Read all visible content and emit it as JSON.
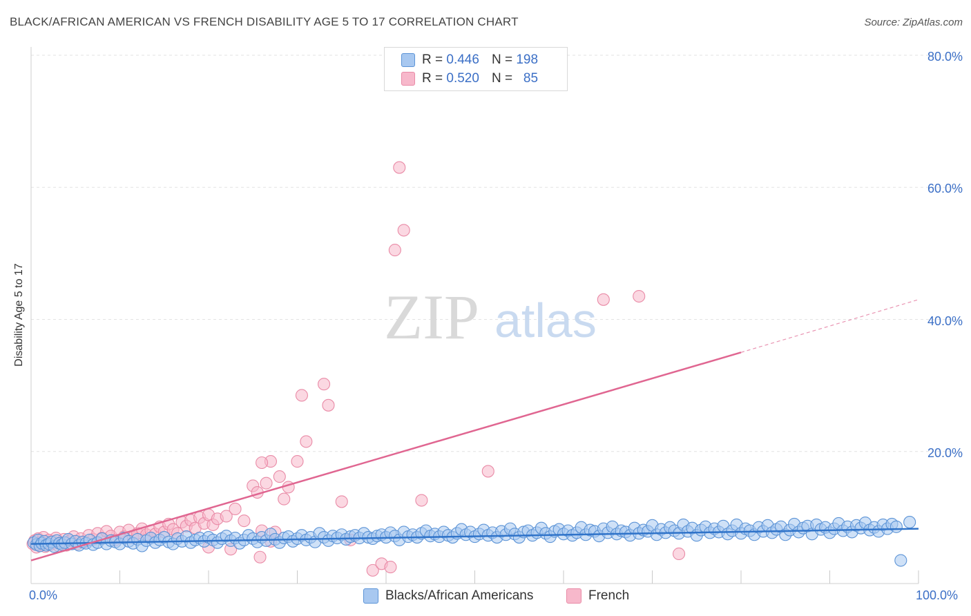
{
  "title": "BLACK/AFRICAN AMERICAN VS FRENCH DISABILITY AGE 5 TO 17 CORRELATION CHART",
  "source": "Source: ZipAtlas.com",
  "watermark": {
    "zip": "ZIP",
    "atlas": "atlas"
  },
  "legend": {
    "r_label": "R =",
    "n_label": "N =",
    "series1": {
      "r": "0.446",
      "n": "198"
    },
    "series2": {
      "r": "0.520",
      "n": "85"
    }
  },
  "colors": {
    "blue_fill": "#a8c8f0",
    "blue_stroke": "#5b93d6",
    "blue_line": "#2f73c9",
    "pink_fill": "#f7b8cb",
    "pink_stroke": "#e98aa6",
    "pink_line": "#e06691",
    "axis_text": "#3b6fc6"
  },
  "chart_data": {
    "type": "scatter",
    "title": "BLACK/AFRICAN AMERICAN VS FRENCH DISABILITY AGE 5 TO 17 CORRELATION CHART",
    "xlabel": "",
    "ylabel": "Disability Age 5 to 17",
    "xlim": [
      0,
      100
    ],
    "ylim": [
      0,
      80
    ],
    "x_tick_labels": {
      "min": "0.0%",
      "max": "100.0%"
    },
    "y_tick_labels": [
      "20.0%",
      "40.0%",
      "60.0%",
      "80.0%"
    ],
    "y_ticks": [
      20,
      40,
      60,
      80
    ],
    "series": [
      {
        "name": "Blacks/African Americans",
        "r": 0.446,
        "n": 198,
        "trend": {
          "x0": 0,
          "y0": 6.0,
          "x1": 100,
          "y1": 8.3
        },
        "points": [
          [
            0.3,
            6.2
          ],
          [
            0.6,
            5.9
          ],
          [
            0.8,
            6.6
          ],
          [
            1.0,
            5.7
          ],
          [
            1.2,
            6.1
          ],
          [
            1.5,
            6.4
          ],
          [
            1.7,
            5.8
          ],
          [
            2.0,
            6.0
          ],
          [
            2.3,
            6.3
          ],
          [
            2.6,
            5.6
          ],
          [
            2.9,
            6.5
          ],
          [
            3.2,
            6.1
          ],
          [
            3.5,
            5.9
          ],
          [
            3.8,
            6.2
          ],
          [
            4.2,
            6.7
          ],
          [
            4.6,
            6.0
          ],
          [
            5.0,
            6.4
          ],
          [
            5.4,
            5.8
          ],
          [
            5.8,
            6.3
          ],
          [
            6.2,
            6.1
          ],
          [
            6.6,
            6.6
          ],
          [
            7.0,
            5.9
          ],
          [
            7.5,
            6.2
          ],
          [
            8.0,
            6.8
          ],
          [
            8.5,
            6.0
          ],
          [
            9.0,
            6.5
          ],
          [
            9.5,
            6.3
          ],
          [
            10.0,
            6.0
          ],
          [
            10.5,
            6.9
          ],
          [
            11.0,
            6.4
          ],
          [
            11.5,
            6.1
          ],
          [
            12.0,
            6.7
          ],
          [
            12.5,
            5.7
          ],
          [
            13.0,
            6.5
          ],
          [
            13.5,
            6.9
          ],
          [
            14.0,
            6.2
          ],
          [
            14.5,
            6.6
          ],
          [
            15.0,
            7.0
          ],
          [
            15.5,
            6.3
          ],
          [
            16.0,
            6.0
          ],
          [
            16.5,
            6.8
          ],
          [
            17.0,
            6.4
          ],
          [
            17.5,
            7.1
          ],
          [
            18.0,
            6.2
          ],
          [
            18.5,
            6.6
          ],
          [
            19.0,
            6.9
          ],
          [
            19.5,
            6.4
          ],
          [
            20.0,
            7.0
          ],
          [
            20.5,
            6.6
          ],
          [
            21.0,
            6.2
          ],
          [
            21.5,
            6.8
          ],
          [
            22.0,
            7.2
          ],
          [
            22.5,
            6.5
          ],
          [
            23.0,
            6.9
          ],
          [
            23.5,
            6.1
          ],
          [
            24.0,
            6.6
          ],
          [
            24.5,
            7.3
          ],
          [
            25.0,
            6.8
          ],
          [
            25.5,
            6.3
          ],
          [
            26.0,
            7.0
          ],
          [
            26.5,
            6.5
          ],
          [
            27.0,
            7.5
          ],
          [
            27.5,
            6.7
          ],
          [
            28.0,
            6.2
          ],
          [
            28.5,
            6.9
          ],
          [
            29.0,
            7.1
          ],
          [
            29.5,
            6.4
          ],
          [
            30.0,
            6.8
          ],
          [
            30.5,
            7.3
          ],
          [
            31.0,
            6.6
          ],
          [
            31.5,
            7.0
          ],
          [
            32.0,
            6.3
          ],
          [
            32.5,
            7.6
          ],
          [
            33.0,
            7.0
          ],
          [
            33.5,
            6.5
          ],
          [
            34.0,
            7.2
          ],
          [
            34.5,
            6.9
          ],
          [
            35.0,
            7.4
          ],
          [
            35.5,
            6.7
          ],
          [
            36.0,
            7.1
          ],
          [
            36.5,
            7.3
          ],
          [
            37.0,
            6.9
          ],
          [
            37.5,
            7.6
          ],
          [
            38.0,
            7.0
          ],
          [
            38.5,
            6.8
          ],
          [
            39.0,
            7.2
          ],
          [
            39.5,
            7.4
          ],
          [
            40.0,
            7.0
          ],
          [
            40.5,
            7.7
          ],
          [
            41.0,
            7.2
          ],
          [
            41.5,
            6.6
          ],
          [
            42.0,
            7.8
          ],
          [
            42.5,
            7.1
          ],
          [
            43.0,
            7.4
          ],
          [
            43.5,
            7.0
          ],
          [
            44.0,
            7.6
          ],
          [
            44.5,
            8.0
          ],
          [
            45.0,
            7.2
          ],
          [
            45.5,
            7.5
          ],
          [
            46.0,
            7.1
          ],
          [
            46.5,
            7.8
          ],
          [
            47.0,
            7.3
          ],
          [
            47.5,
            7.0
          ],
          [
            48.0,
            7.6
          ],
          [
            48.5,
            8.2
          ],
          [
            49.0,
            7.4
          ],
          [
            49.5,
            7.8
          ],
          [
            50.0,
            7.1
          ],
          [
            50.5,
            7.5
          ],
          [
            51.0,
            8.1
          ],
          [
            51.5,
            7.3
          ],
          [
            52.0,
            7.7
          ],
          [
            52.5,
            7.0
          ],
          [
            53.0,
            7.9
          ],
          [
            53.5,
            7.4
          ],
          [
            54.0,
            8.3
          ],
          [
            54.5,
            7.5
          ],
          [
            55.0,
            7.0
          ],
          [
            55.5,
            7.8
          ],
          [
            56.0,
            8.0
          ],
          [
            56.5,
            7.3
          ],
          [
            57.0,
            7.7
          ],
          [
            57.5,
            8.4
          ],
          [
            58.0,
            7.6
          ],
          [
            58.5,
            7.1
          ],
          [
            59.0,
            7.9
          ],
          [
            59.5,
            8.2
          ],
          [
            60.0,
            7.5
          ],
          [
            60.5,
            8.0
          ],
          [
            61.0,
            7.3
          ],
          [
            61.5,
            7.7
          ],
          [
            62.0,
            8.5
          ],
          [
            62.5,
            7.4
          ],
          [
            63.0,
            8.1
          ],
          [
            63.5,
            7.9
          ],
          [
            64.0,
            7.2
          ],
          [
            64.5,
            8.3
          ],
          [
            65.0,
            7.7
          ],
          [
            65.5,
            8.6
          ],
          [
            66.0,
            7.5
          ],
          [
            66.5,
            8.0
          ],
          [
            67.0,
            7.8
          ],
          [
            67.5,
            7.3
          ],
          [
            68.0,
            8.4
          ],
          [
            68.5,
            7.6
          ],
          [
            69.0,
            8.1
          ],
          [
            69.5,
            7.9
          ],
          [
            70.0,
            8.8
          ],
          [
            70.5,
            7.4
          ],
          [
            71.0,
            8.2
          ],
          [
            71.5,
            7.7
          ],
          [
            72.0,
            8.5
          ],
          [
            72.5,
            8.0
          ],
          [
            73.0,
            7.6
          ],
          [
            73.5,
            8.9
          ],
          [
            74.0,
            7.9
          ],
          [
            74.5,
            8.4
          ],
          [
            75.0,
            7.3
          ],
          [
            75.5,
            8.1
          ],
          [
            76.0,
            8.6
          ],
          [
            76.5,
            7.7
          ],
          [
            77.0,
            8.3
          ],
          [
            77.5,
            7.8
          ],
          [
            78.0,
            8.7
          ],
          [
            78.5,
            7.5
          ],
          [
            79.0,
            8.0
          ],
          [
            79.5,
            8.9
          ],
          [
            80.0,
            7.6
          ],
          [
            80.5,
            8.3
          ],
          [
            81.0,
            8.0
          ],
          [
            81.5,
            7.4
          ],
          [
            82.0,
            8.5
          ],
          [
            82.5,
            7.9
          ],
          [
            83.0,
            8.8
          ],
          [
            83.5,
            7.7
          ],
          [
            84.0,
            8.2
          ],
          [
            84.5,
            8.6
          ],
          [
            85.0,
            7.4
          ],
          [
            85.5,
            8.1
          ],
          [
            86.0,
            9.0
          ],
          [
            86.5,
            7.8
          ],
          [
            87.0,
            8.4
          ],
          [
            87.5,
            8.7
          ],
          [
            88.0,
            7.5
          ],
          [
            88.5,
            8.9
          ],
          [
            89.0,
            8.2
          ],
          [
            89.5,
            8.5
          ],
          [
            90.0,
            7.7
          ],
          [
            90.5,
            8.3
          ],
          [
            91.0,
            9.1
          ],
          [
            91.5,
            8.0
          ],
          [
            92.0,
            8.6
          ],
          [
            92.5,
            7.8
          ],
          [
            93.0,
            8.8
          ],
          [
            93.5,
            8.4
          ],
          [
            94.0,
            9.2
          ],
          [
            94.5,
            8.1
          ],
          [
            95.0,
            8.5
          ],
          [
            95.5,
            7.9
          ],
          [
            96.0,
            8.9
          ],
          [
            96.5,
            8.3
          ],
          [
            97.0,
            9.0
          ],
          [
            97.5,
            8.6
          ],
          [
            98.0,
            3.5
          ],
          [
            99.0,
            9.3
          ]
        ]
      },
      {
        "name": "French",
        "r": 0.52,
        "n": 85,
        "trend": {
          "x0": 0,
          "y0": 3.5,
          "x1": 80,
          "y1": 35.0,
          "dashed_to": [
            100,
            43.0
          ]
        },
        "points": [
          [
            0.2,
            6.0
          ],
          [
            0.4,
            6.5
          ],
          [
            0.6,
            5.5
          ],
          [
            0.8,
            6.8
          ],
          [
            1.0,
            5.8
          ],
          [
            1.2,
            6.3
          ],
          [
            1.4,
            7.0
          ],
          [
            1.6,
            5.6
          ],
          [
            1.8,
            6.1
          ],
          [
            2.0,
            6.6
          ],
          [
            2.2,
            5.9
          ],
          [
            2.5,
            6.4
          ],
          [
            2.8,
            6.9
          ],
          [
            3.1,
            5.7
          ],
          [
            3.4,
            6.2
          ],
          [
            3.7,
            6.7
          ],
          [
            4.0,
            5.8
          ],
          [
            4.4,
            6.5
          ],
          [
            4.8,
            7.1
          ],
          [
            5.2,
            6.0
          ],
          [
            5.6,
            6.8
          ],
          [
            6.0,
            6.3
          ],
          [
            6.5,
            7.3
          ],
          [
            7.0,
            6.7
          ],
          [
            7.5,
            7.6
          ],
          [
            8.0,
            6.9
          ],
          [
            8.5,
            7.9
          ],
          [
            9.0,
            7.2
          ],
          [
            9.5,
            6.6
          ],
          [
            10.0,
            7.8
          ],
          [
            10.5,
            7.1
          ],
          [
            11.0,
            8.1
          ],
          [
            11.5,
            7.0
          ],
          [
            12.0,
            7.6
          ],
          [
            12.5,
            8.3
          ],
          [
            13.0,
            7.4
          ],
          [
            13.5,
            8.0
          ],
          [
            14.0,
            7.5
          ],
          [
            14.5,
            8.6
          ],
          [
            15.0,
            7.8
          ],
          [
            15.5,
            9.0
          ],
          [
            16.0,
            8.2
          ],
          [
            16.5,
            7.6
          ],
          [
            17.0,
            9.3
          ],
          [
            17.5,
            8.7
          ],
          [
            18.0,
            9.6
          ],
          [
            18.5,
            8.4
          ],
          [
            19.0,
            10.0
          ],
          [
            19.5,
            9.1
          ],
          [
            20.0,
            10.4
          ],
          [
            20.5,
            8.9
          ],
          [
            21.0,
            9.8
          ],
          [
            22.0,
            10.2
          ],
          [
            22.5,
            5.2
          ],
          [
            23.0,
            11.3
          ],
          [
            24.0,
            9.5
          ],
          [
            25.0,
            14.8
          ],
          [
            25.5,
            13.8
          ],
          [
            26.0,
            8.0
          ],
          [
            26.5,
            15.2
          ],
          [
            27.0,
            6.4
          ],
          [
            27.5,
            7.8
          ],
          [
            28.0,
            16.2
          ],
          [
            28.5,
            12.8
          ],
          [
            29.0,
            14.6
          ],
          [
            30.0,
            18.5
          ],
          [
            31.0,
            21.5
          ],
          [
            33.0,
            30.2
          ],
          [
            33.5,
            27.0
          ],
          [
            30.5,
            28.5
          ],
          [
            35.0,
            12.4
          ],
          [
            36.0,
            6.6
          ],
          [
            38.5,
            2.0
          ],
          [
            39.5,
            3.0
          ],
          [
            40.5,
            2.5
          ],
          [
            41.0,
            50.5
          ],
          [
            42.0,
            53.5
          ],
          [
            41.5,
            63.0
          ],
          [
            44.0,
            12.6
          ],
          [
            51.5,
            17.0
          ],
          [
            64.5,
            43.0
          ],
          [
            68.5,
            43.5
          ],
          [
            73.0,
            4.5
          ],
          [
            27.0,
            18.5
          ],
          [
            26.0,
            18.3
          ],
          [
            20.0,
            5.5
          ],
          [
            25.8,
            4.0
          ]
        ]
      }
    ]
  },
  "bottom_legend": {
    "series1_label": "Blacks/African Americans",
    "series2_label": "French"
  }
}
